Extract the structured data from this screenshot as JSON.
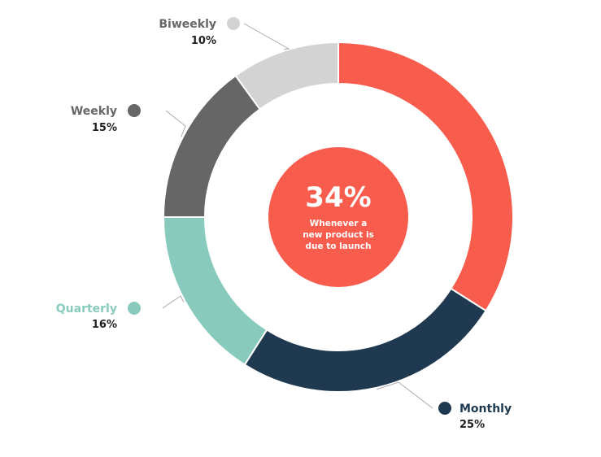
{
  "chart_data": {
    "type": "pie",
    "donut": true,
    "slices": [
      {
        "label": "",
        "value": 34,
        "display": "",
        "color": "#f75c4c"
      },
      {
        "label": "Monthly",
        "value": 25,
        "display": "25%",
        "color": "#1f3a50"
      },
      {
        "label": "Quarterly",
        "value": 16,
        "display": "16%",
        "color": "#88cbbd"
      },
      {
        "label": "Weekly",
        "value": 15,
        "display": "15%",
        "color": "#666666"
      },
      {
        "label": "Biweekly",
        "value": 10,
        "display": "10%",
        "color": "#d3d3d3"
      }
    ],
    "center": {
      "value": "34%",
      "text_lines": [
        "Whenever a",
        "new product is",
        "due to launch"
      ],
      "color": "#f75c4c"
    }
  }
}
